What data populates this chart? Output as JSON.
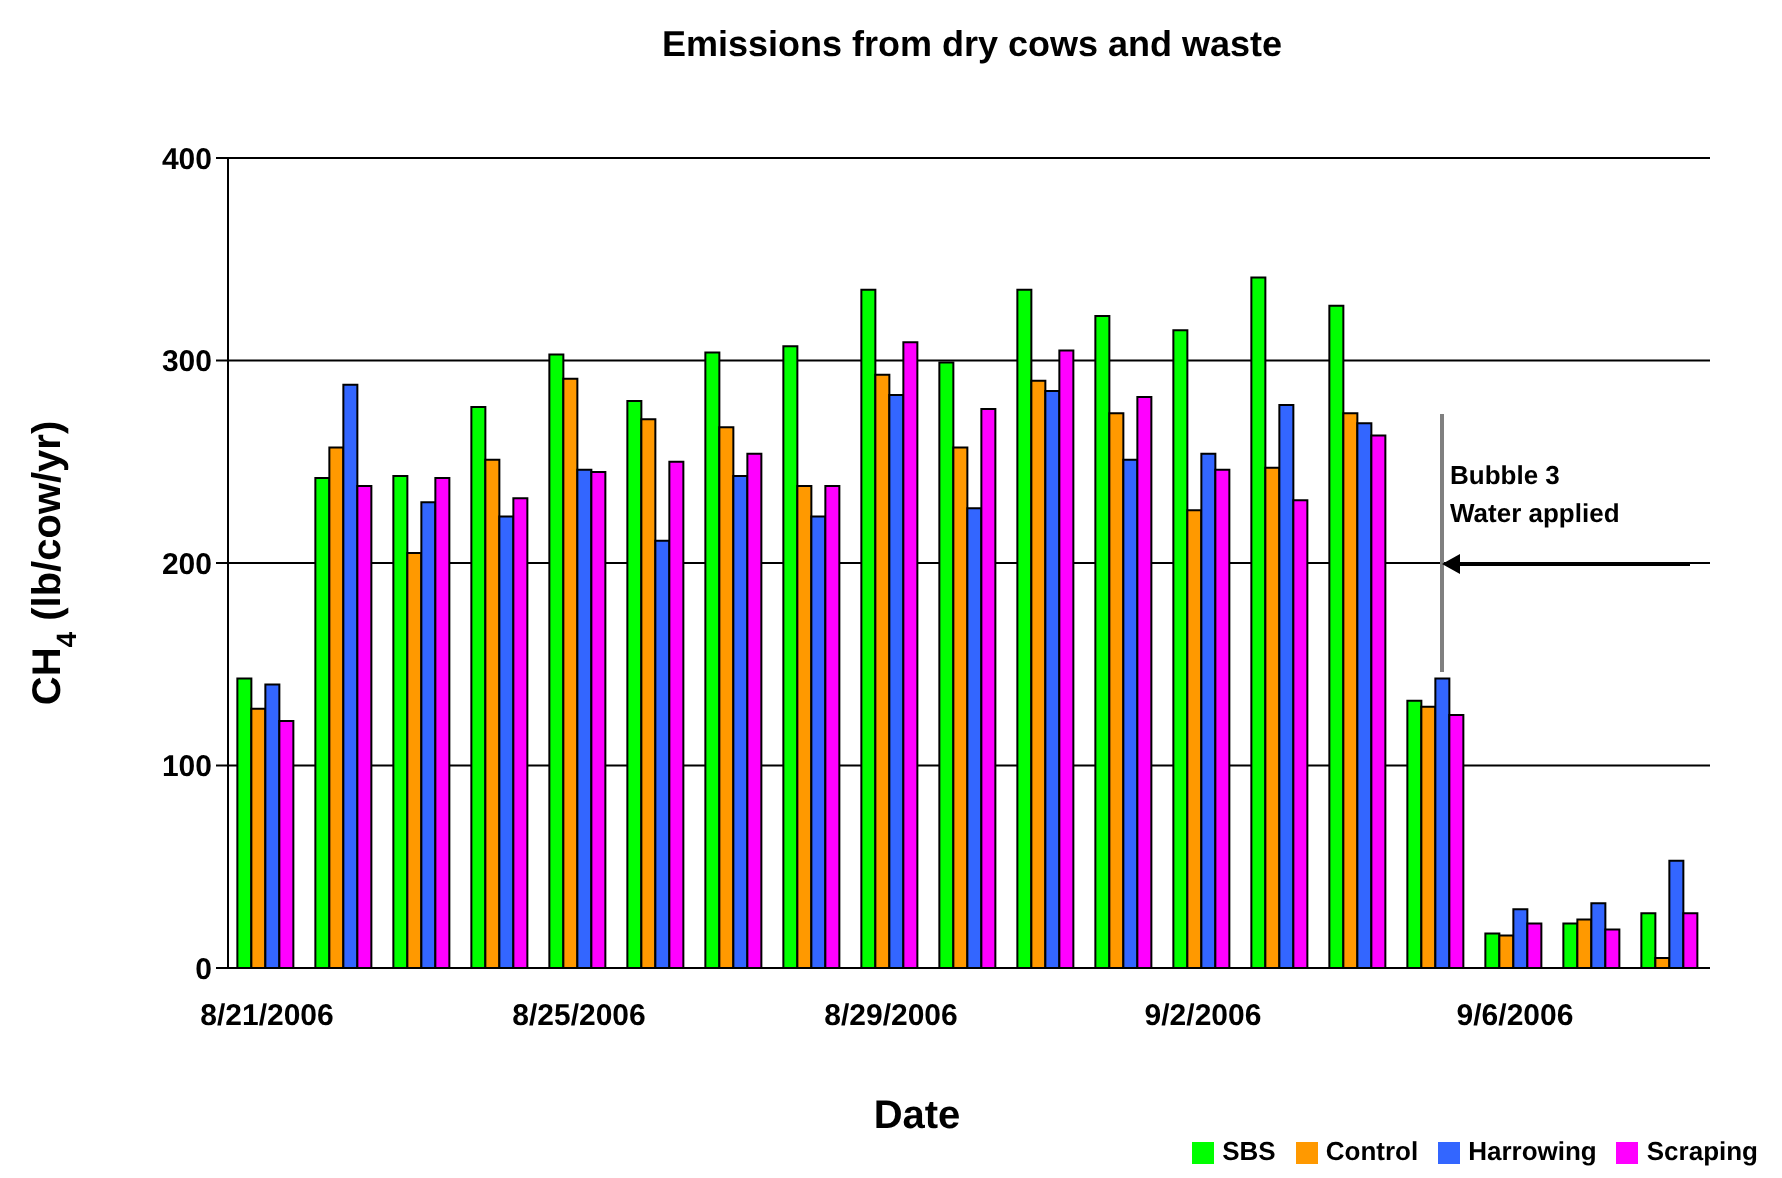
{
  "chart_data": {
    "type": "bar",
    "title": "Emissions from dry cows and waste",
    "xlabel": "Date",
    "ylabel": "CH$_{4}$ (lb/cow/yr)",
    "categories": [
      "8/21/2006",
      null,
      null,
      null,
      "8/25/2006",
      null,
      null,
      null,
      "8/29/2006",
      null,
      null,
      null,
      "9/2/2006",
      null,
      null,
      null,
      "9/6/2006",
      null,
      null
    ],
    "series": [
      {
        "name": "SBS",
        "color": "#00ff00",
        "values": [
          143,
          242,
          243,
          277,
          303,
          280,
          304,
          307,
          335,
          299,
          335,
          322,
          315,
          341,
          327,
          132,
          17,
          22,
          27
        ]
      },
      {
        "name": "Control",
        "color": "#ff9900",
        "values": [
          128,
          257,
          205,
          251,
          291,
          271,
          267,
          238,
          293,
          257,
          290,
          274,
          226,
          247,
          274,
          129,
          16,
          24,
          5
        ]
      },
      {
        "name": "Harrowing",
        "color": "#3366ff",
        "values": [
          140,
          288,
          230,
          223,
          246,
          211,
          243,
          223,
          283,
          227,
          285,
          251,
          254,
          278,
          269,
          143,
          29,
          32,
          53
        ]
      },
      {
        "name": "Scraping",
        "color": "#ff00ff",
        "values": [
          122,
          238,
          242,
          232,
          245,
          250,
          254,
          238,
          309,
          276,
          305,
          282,
          246,
          231,
          263,
          125,
          22,
          19,
          27
        ]
      }
    ],
    "ylim": [
      0,
      400
    ],
    "yticks": [
      0,
      100,
      200,
      300,
      400
    ],
    "grid": "y",
    "legend": "bottom right",
    "annotations": [
      "Bubble 3\nWater applied"
    ]
  }
}
